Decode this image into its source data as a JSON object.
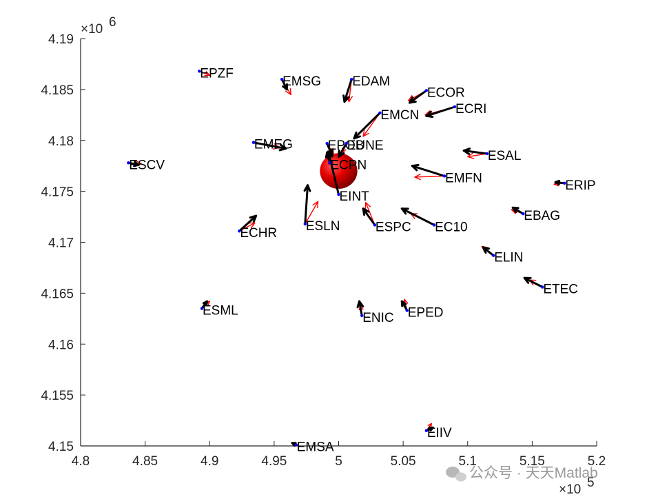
{
  "chart_data": {
    "type": "scatter",
    "title": "",
    "xlabel": "",
    "ylabel": "",
    "xlim": [
      480000,
      520000
    ],
    "ylim": [
      4150000,
      4190000
    ],
    "x_ticks": [
      "4.8",
      "4.85",
      "4.9",
      "4.95",
      "5",
      "5.05",
      "5.1",
      "5.15",
      "5.2"
    ],
    "x_tick_values": [
      480000,
      485000,
      490000,
      495000,
      500000,
      505000,
      510000,
      515000,
      520000
    ],
    "y_ticks": [
      "4.15",
      "4.155",
      "4.16",
      "4.165",
      "4.17",
      "4.175",
      "4.18",
      "4.185",
      "4.19"
    ],
    "y_tick_values": [
      4150000,
      4155000,
      4160000,
      4165000,
      4170000,
      4175000,
      4180000,
      4185000,
      4190000
    ],
    "x_multiplier": "×10",
    "x_exponent": "5",
    "y_multiplier": "×10",
    "y_exponent": "6",
    "grid": false,
    "colors": {
      "observed": "#000000",
      "modeled": "#ff0000",
      "station": "#0000ff",
      "source": "#e00000"
    },
    "source_sphere": {
      "x": 500000,
      "y": 4177000,
      "rx": 1450,
      "ry": 1750
    },
    "stations": [
      {
        "name": "EPZF",
        "x": 489200,
        "y": 4186800,
        "obs": [
          0,
          0
        ],
        "mod": [
          800,
          -400
        ]
      },
      {
        "name": "EMSG",
        "x": 495600,
        "y": 4186000,
        "obs": [
          400,
          -1000
        ],
        "mod": [
          700,
          -1500
        ]
      },
      {
        "name": "EDAM",
        "x": 501000,
        "y": 4186000,
        "obs": [
          -550,
          -2200
        ],
        "mod": [
          -200,
          -2200
        ]
      },
      {
        "name": "ECOR",
        "x": 506800,
        "y": 4184900,
        "obs": [
          -1300,
          -1200
        ],
        "mod": [
          -1400,
          -1000
        ]
      },
      {
        "name": "ECRI",
        "x": 509000,
        "y": 4183300,
        "obs": [
          -2200,
          -900
        ],
        "mod": [
          -2300,
          -800
        ]
      },
      {
        "name": "EMCN",
        "x": 503200,
        "y": 4182700,
        "obs": [
          -2000,
          -2500
        ],
        "mod": [
          -1300,
          -2300
        ]
      },
      {
        "name": "EMEG",
        "x": 493400,
        "y": 4179800,
        "obs": [
          2500,
          -600
        ],
        "mod": [
          2000,
          -500
        ]
      },
      {
        "name": "EPOB",
        "x": 499100,
        "y": 4179700,
        "obs": [
          400,
          -1200
        ],
        "mod": [
          500,
          -1000
        ]
      },
      {
        "name": "EUNE",
        "x": 500600,
        "y": 4179700,
        "obs": [
          -600,
          -1300
        ],
        "mod": [
          -300,
          -900
        ]
      },
      {
        "name": "ECPN",
        "x": 499300,
        "y": 4177800,
        "obs": [
          -200,
          1000
        ],
        "mod": [
          -100,
          700
        ]
      },
      {
        "name": "EINT",
        "x": 500000,
        "y": 4174700,
        "obs": [
          -800,
          4200
        ],
        "mod": [
          -700,
          3500
        ]
      },
      {
        "name": "ESCV",
        "x": 483700,
        "y": 4177800,
        "obs": [
          800,
          -200
        ],
        "mod": [
          1000,
          -100
        ]
      },
      {
        "name": "ESAL",
        "x": 511500,
        "y": 4178700,
        "obs": [
          -1800,
          300
        ],
        "mod": [
          -1500,
          -300
        ]
      },
      {
        "name": "EMFN",
        "x": 508200,
        "y": 4176500,
        "obs": [
          -2500,
          1000
        ],
        "mod": [
          -2300,
          -100
        ]
      },
      {
        "name": "ERIP",
        "x": 517500,
        "y": 4175800,
        "obs": [
          -700,
          100
        ],
        "mod": [
          -800,
          -100
        ]
      },
      {
        "name": "ESLN",
        "x": 497400,
        "y": 4171800,
        "obs": [
          200,
          3800
        ],
        "mod": [
          1000,
          2200
        ]
      },
      {
        "name": "ECHR",
        "x": 492300,
        "y": 4171100,
        "obs": [
          1300,
          1500
        ],
        "mod": [
          1200,
          800
        ]
      },
      {
        "name": "ESPC",
        "x": 502800,
        "y": 4171700,
        "obs": [
          -900,
          1600
        ],
        "mod": [
          -700,
          2200
        ]
      },
      {
        "name": "EC10",
        "x": 507400,
        "y": 4171700,
        "obs": [
          -2500,
          1600
        ],
        "mod": [
          -1800,
          1100
        ]
      },
      {
        "name": "EBAG",
        "x": 514300,
        "y": 4172800,
        "obs": [
          -800,
          600
        ],
        "mod": [
          -900,
          400
        ]
      },
      {
        "name": "ELIN",
        "x": 512000,
        "y": 4168700,
        "obs": [
          -800,
          800
        ],
        "mod": [
          -900,
          900
        ]
      },
      {
        "name": "ETEC",
        "x": 515800,
        "y": 4165600,
        "obs": [
          -1400,
          900
        ],
        "mod": [
          -1000,
          700
        ]
      },
      {
        "name": "ESML",
        "x": 489400,
        "y": 4163500,
        "obs": [
          400,
          700
        ],
        "mod": [
          600,
          700
        ]
      },
      {
        "name": "ENIC",
        "x": 501800,
        "y": 4162800,
        "obs": [
          -200,
          1400
        ],
        "mod": [
          -100,
          1000
        ]
      },
      {
        "name": "EPED",
        "x": 505300,
        "y": 4163300,
        "obs": [
          -400,
          900
        ],
        "mod": [
          -200,
          1100
        ]
      },
      {
        "name": "EIIV",
        "x": 506800,
        "y": 4151500,
        "obs": [
          500,
          300
        ],
        "mod": [
          400,
          700
        ]
      },
      {
        "name": "EMSA",
        "x": 496700,
        "y": 4150100,
        "obs": [
          -300,
          200
        ],
        "mod": [
          -100,
          200
        ]
      }
    ]
  },
  "watermark": {
    "text": "公众号 · 天天Matlab",
    "icon": "wechat-icon"
  }
}
